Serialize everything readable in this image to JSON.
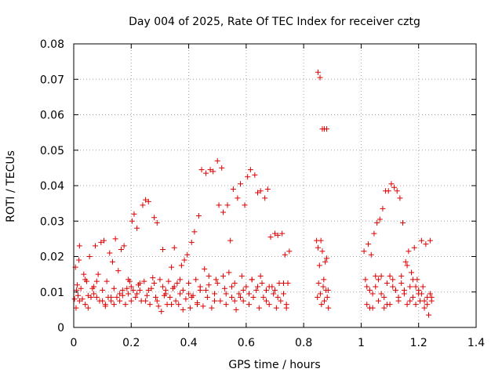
{
  "chart_data": {
    "type": "scatter",
    "title": "Day 004 of 2025, Rate Of TEC Index for receiver cztg",
    "xlabel": "GPS time / hours",
    "ylabel": "ROTI / TECUs",
    "xlim": [
      0,
      1.4
    ],
    "ylim": [
      0,
      0.08
    ],
    "x_ticks": [
      0,
      0.2,
      0.4,
      0.6,
      0.8,
      1,
      1.2,
      1.4
    ],
    "x_tick_labels": [
      "0",
      "0.2",
      "0.4",
      "0.6",
      "0.8",
      "1",
      "1.2",
      "1.4"
    ],
    "y_ticks": [
      0,
      0.01,
      0.02,
      0.03,
      0.04,
      0.05,
      0.06,
      0.07,
      0.08
    ],
    "y_tick_labels": [
      "0",
      "0.01",
      "0.02",
      "0.03",
      "0.04",
      "0.05",
      "0.06",
      "0.07",
      "0.08"
    ],
    "grid": true,
    "marker": "+",
    "marker_color": "#dd0000",
    "series": [
      {
        "name": "ROTI",
        "points": [
          [
            0.003,
            0.008
          ],
          [
            0.006,
            0.017
          ],
          [
            0.008,
            0.0055
          ],
          [
            0.012,
            0.012
          ],
          [
            0.015,
            0.009
          ],
          [
            0.018,
            0.019
          ],
          [
            0.02,
            0.0075
          ],
          [
            0.025,
            0.011
          ],
          [
            0.03,
            0.008
          ],
          [
            0.035,
            0.015
          ],
          [
            0.04,
            0.0065
          ],
          [
            0.045,
            0.013
          ],
          [
            0.05,
            0.009
          ],
          [
            0.055,
            0.02
          ],
          [
            0.06,
            0.0085
          ],
          [
            0.065,
            0.011
          ],
          [
            0.07,
            0.0095
          ],
          [
            0.075,
            0.023
          ],
          [
            0.08,
            0.0085
          ],
          [
            0.085,
            0.015
          ],
          [
            0.09,
            0.0075
          ],
          [
            0.095,
            0.024
          ],
          [
            0.1,
            0.0105
          ],
          [
            0.105,
            0.0245
          ],
          [
            0.11,
            0.006
          ],
          [
            0.115,
            0.013
          ],
          [
            0.12,
            0.0085
          ],
          [
            0.125,
            0.021
          ],
          [
            0.13,
            0.0075
          ],
          [
            0.135,
            0.0185
          ],
          [
            0.14,
            0.0065
          ],
          [
            0.145,
            0.025
          ],
          [
            0.15,
            0.0085
          ],
          [
            0.155,
            0.016
          ],
          [
            0.16,
            0.0075
          ],
          [
            0.165,
            0.022
          ],
          [
            0.17,
            0.009
          ],
          [
            0.175,
            0.023
          ],
          [
            0.18,
            0.0065
          ],
          [
            0.185,
            0.011
          ],
          [
            0.19,
            0.0095
          ],
          [
            0.195,
            0.013
          ],
          [
            0.2,
            0.0075
          ],
          [
            0.203,
            0.03
          ],
          [
            0.207,
            0.0105
          ],
          [
            0.21,
            0.032
          ],
          [
            0.215,
            0.0085
          ],
          [
            0.22,
            0.028
          ],
          [
            0.225,
            0.012
          ],
          [
            0.23,
            0.0105
          ],
          [
            0.235,
            0.0075
          ],
          [
            0.24,
            0.0345
          ],
          [
            0.245,
            0.013
          ],
          [
            0.25,
            0.036
          ],
          [
            0.255,
            0.009
          ],
          [
            0.26,
            0.0355
          ],
          [
            0.265,
            0.0065
          ],
          [
            0.27,
            0.011
          ],
          [
            0.275,
            0.014
          ],
          [
            0.28,
            0.031
          ],
          [
            0.285,
            0.0085
          ],
          [
            0.29,
            0.0295
          ],
          [
            0.295,
            0.006
          ],
          [
            0.3,
            0.0135
          ],
          [
            0.305,
            0.0045
          ],
          [
            0.31,
            0.022
          ],
          [
            0.315,
            0.009
          ],
          [
            0.32,
            0.0105
          ],
          [
            0.325,
            0.0065
          ],
          [
            0.33,
            0.013
          ],
          [
            0.335,
            0.0085
          ],
          [
            0.34,
            0.017
          ],
          [
            0.345,
            0.011
          ],
          [
            0.35,
            0.0225
          ],
          [
            0.355,
            0.0075
          ],
          [
            0.36,
            0.0125
          ],
          [
            0.365,
            0.0065
          ],
          [
            0.37,
            0.0095
          ],
          [
            0.375,
            0.0175
          ],
          [
            0.38,
            0.005
          ],
          [
            0.385,
            0.019
          ],
          [
            0.39,
            0.008
          ],
          [
            0.395,
            0.0205
          ],
          [
            0.4,
            0.0125
          ],
          [
            0.405,
            0.0055
          ],
          [
            0.41,
            0.024
          ],
          [
            0.415,
            0.009
          ],
          [
            0.42,
            0.027
          ],
          [
            0.425,
            0.0135
          ],
          [
            0.43,
            0.007
          ],
          [
            0.435,
            0.0315
          ],
          [
            0.44,
            0.0105
          ],
          [
            0.445,
            0.0445
          ],
          [
            0.45,
            0.006
          ],
          [
            0.455,
            0.0165
          ],
          [
            0.46,
            0.0435
          ],
          [
            0.465,
            0.0085
          ],
          [
            0.47,
            0.012
          ],
          [
            0.475,
            0.0445
          ],
          [
            0.48,
            0.0055
          ],
          [
            0.485,
            0.044
          ],
          [
            0.49,
            0.0095
          ],
          [
            0.495,
            0.0135
          ],
          [
            0.5,
            0.047
          ],
          [
            0.505,
            0.0345
          ],
          [
            0.51,
            0.0075
          ],
          [
            0.515,
            0.045
          ],
          [
            0.52,
            0.0325
          ],
          [
            0.525,
            0.011
          ],
          [
            0.53,
            0.0065
          ],
          [
            0.535,
            0.0345
          ],
          [
            0.54,
            0.0155
          ],
          [
            0.545,
            0.0245
          ],
          [
            0.55,
            0.0085
          ],
          [
            0.555,
            0.039
          ],
          [
            0.56,
            0.0125
          ],
          [
            0.565,
            0.005
          ],
          [
            0.57,
            0.0365
          ],
          [
            0.575,
            0.0095
          ],
          [
            0.58,
            0.0405
          ],
          [
            0.585,
            0.0145
          ],
          [
            0.59,
            0.0075
          ],
          [
            0.595,
            0.0345
          ],
          [
            0.6,
            0.0115
          ],
          [
            0.605,
            0.0425
          ],
          [
            0.61,
            0.0065
          ],
          [
            0.615,
            0.0445
          ],
          [
            0.62,
            0.0135
          ],
          [
            0.625,
            0.0085
          ],
          [
            0.63,
            0.043
          ],
          [
            0.635,
            0.0105
          ],
          [
            0.64,
            0.038
          ],
          [
            0.645,
            0.0055
          ],
          [
            0.65,
            0.0385
          ],
          [
            0.655,
            0.0125
          ],
          [
            0.66,
            0.0085
          ],
          [
            0.665,
            0.0365
          ],
          [
            0.67,
            0.0105
          ],
          [
            0.675,
            0.039
          ],
          [
            0.68,
            0.0065
          ],
          [
            0.685,
            0.0255
          ],
          [
            0.69,
            0.0115
          ],
          [
            0.695,
            0.0095
          ],
          [
            0.7,
            0.0265
          ],
          [
            0.705,
            0.0055
          ],
          [
            0.71,
            0.026
          ],
          [
            0.715,
            0.0125
          ],
          [
            0.72,
            0.0075
          ],
          [
            0.725,
            0.0265
          ],
          [
            0.73,
            0.0095
          ],
          [
            0.735,
            0.0205
          ],
          [
            0.74,
            0.0055
          ],
          [
            0.745,
            0.0125
          ],
          [
            0.75,
            0.0215
          ],
          [
            0.02,
            0.023
          ],
          [
            0.05,
            0.0055
          ],
          [
            0.08,
            0.013
          ],
          [
            0.11,
            0.0065
          ],
          [
            0.14,
            0.011
          ],
          [
            0.17,
            0.0105
          ],
          [
            0.2,
            0.0115
          ],
          [
            0.23,
            0.0125
          ],
          [
            0.26,
            0.0105
          ],
          [
            0.29,
            0.0075
          ],
          [
            0.32,
            0.0095
          ],
          [
            0.35,
            0.0115
          ],
          [
            0.38,
            0.0105
          ],
          [
            0.41,
            0.0085
          ],
          [
            0.44,
            0.0115
          ],
          [
            0.47,
            0.0145
          ],
          [
            0.5,
            0.0125
          ],
          [
            0.53,
            0.0095
          ],
          [
            0.56,
            0.0075
          ],
          [
            0.59,
            0.0105
          ],
          [
            0.62,
            0.0135
          ],
          [
            0.65,
            0.0145
          ],
          [
            0.68,
            0.0115
          ],
          [
            0.71,
            0.0085
          ],
          [
            0.74,
            0.0065
          ],
          [
            0.01,
            0.0105
          ],
          [
            0.04,
            0.0135
          ],
          [
            0.07,
            0.0115
          ],
          [
            0.1,
            0.0075
          ],
          [
            0.13,
            0.0085
          ],
          [
            0.16,
            0.0095
          ],
          [
            0.19,
            0.0135
          ],
          [
            0.22,
            0.0095
          ],
          [
            0.25,
            0.0075
          ],
          [
            0.28,
            0.0125
          ],
          [
            0.31,
            0.0115
          ],
          [
            0.34,
            0.0065
          ],
          [
            0.37,
            0.0135
          ],
          [
            0.4,
            0.0095
          ],
          [
            0.43,
            0.0065
          ],
          [
            0.46,
            0.0105
          ],
          [
            0.49,
            0.0075
          ],
          [
            0.52,
            0.0145
          ],
          [
            0.55,
            0.0115
          ],
          [
            0.58,
            0.0085
          ],
          [
            0.61,
            0.0095
          ],
          [
            0.64,
            0.0115
          ],
          [
            0.67,
            0.0075
          ],
          [
            0.7,
            0.0105
          ],
          [
            0.73,
            0.0125
          ],
          [
            0.85,
            0.072
          ],
          [
            0.857,
            0.0705
          ],
          [
            0.865,
            0.056
          ],
          [
            0.872,
            0.056
          ],
          [
            0.88,
            0.056
          ],
          [
            0.845,
            0.0245
          ],
          [
            0.85,
            0.0225
          ],
          [
            0.855,
            0.0175
          ],
          [
            0.86,
            0.0245
          ],
          [
            0.865,
            0.0215
          ],
          [
            0.87,
            0.0135
          ],
          [
            0.875,
            0.0185
          ],
          [
            0.88,
            0.0195
          ],
          [
            0.885,
            0.0105
          ],
          [
            0.848,
            0.0085
          ],
          [
            0.852,
            0.0125
          ],
          [
            0.858,
            0.0095
          ],
          [
            0.862,
            0.0065
          ],
          [
            0.868,
            0.0115
          ],
          [
            0.872,
            0.0075
          ],
          [
            0.878,
            0.0105
          ],
          [
            0.882,
            0.0085
          ],
          [
            0.886,
            0.0055
          ],
          [
            1.01,
            0.0215
          ],
          [
            1.015,
            0.0135
          ],
          [
            1.02,
            0.0065
          ],
          [
            1.025,
            0.0235
          ],
          [
            1.03,
            0.0105
          ],
          [
            1.035,
            0.0205
          ],
          [
            1.04,
            0.0055
          ],
          [
            1.045,
            0.0265
          ],
          [
            1.05,
            0.0115
          ],
          [
            1.055,
            0.0295
          ],
          [
            1.06,
            0.0075
          ],
          [
            1.065,
            0.0305
          ],
          [
            1.07,
            0.0145
          ],
          [
            1.075,
            0.0335
          ],
          [
            1.08,
            0.0085
          ],
          [
            1.085,
            0.0385
          ],
          [
            1.09,
            0.0125
          ],
          [
            1.095,
            0.0385
          ],
          [
            1.1,
            0.0065
          ],
          [
            1.105,
            0.0405
          ],
          [
            1.11,
            0.0135
          ],
          [
            1.115,
            0.0395
          ],
          [
            1.12,
            0.0105
          ],
          [
            1.125,
            0.0385
          ],
          [
            1.13,
            0.0075
          ],
          [
            1.135,
            0.0365
          ],
          [
            1.14,
            0.0145
          ],
          [
            1.145,
            0.0295
          ],
          [
            1.15,
            0.0095
          ],
          [
            1.155,
            0.0185
          ],
          [
            1.16,
            0.0065
          ],
          [
            1.165,
            0.0215
          ],
          [
            1.17,
            0.0115
          ],
          [
            1.175,
            0.0155
          ],
          [
            1.18,
            0.0085
          ],
          [
            1.185,
            0.0225
          ],
          [
            1.19,
            0.0065
          ],
          [
            1.195,
            0.0135
          ],
          [
            1.2,
            0.0095
          ],
          [
            1.205,
            0.0075
          ],
          [
            1.21,
            0.0245
          ],
          [
            1.215,
            0.0115
          ],
          [
            1.22,
            0.0055
          ],
          [
            1.225,
            0.0235
          ],
          [
            1.23,
            0.0085
          ],
          [
            1.235,
            0.0035
          ],
          [
            1.24,
            0.0245
          ],
          [
            1.245,
            0.0075
          ],
          [
            1.02,
            0.0115
          ],
          [
            1.04,
            0.0095
          ],
          [
            1.06,
            0.0135
          ],
          [
            1.08,
            0.0055
          ],
          [
            1.1,
            0.0145
          ],
          [
            1.12,
            0.0105
          ],
          [
            1.14,
            0.0125
          ],
          [
            1.16,
            0.0175
          ],
          [
            1.18,
            0.0135
          ],
          [
            1.2,
            0.0105
          ],
          [
            1.22,
            0.0075
          ],
          [
            1.24,
            0.0095
          ],
          [
            1.03,
            0.0055
          ],
          [
            1.05,
            0.0145
          ],
          [
            1.07,
            0.0095
          ],
          [
            1.09,
            0.0065
          ],
          [
            1.11,
            0.0115
          ],
          [
            1.13,
            0.0085
          ],
          [
            1.15,
            0.0105
          ],
          [
            1.17,
            0.0075
          ],
          [
            1.19,
            0.0115
          ],
          [
            1.21,
            0.0095
          ],
          [
            1.23,
            0.0065
          ],
          [
            1.245,
            0.0085
          ]
        ]
      }
    ]
  }
}
